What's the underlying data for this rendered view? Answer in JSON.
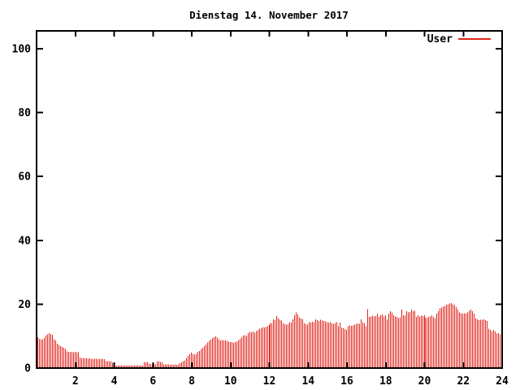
{
  "chart_data": {
    "type": "bar",
    "title": "Dienstag 14. November 2017",
    "xlabel": "",
    "ylabel": "",
    "x": {
      "unit": "hour",
      "min": 0,
      "max": 24,
      "ticks": [
        2,
        4,
        6,
        8,
        10,
        12,
        14,
        16,
        18,
        20,
        22,
        24
      ]
    },
    "y": {
      "min": 0,
      "max": 105,
      "ticks": [
        0,
        20,
        40,
        60,
        80,
        100
      ]
    },
    "grid": false,
    "legend_position": "top-right-inside",
    "sample_interval_minutes": 5,
    "series": [
      {
        "name": "User",
        "color": "#e1251d",
        "style": "impulses",
        "values": [
          9.7,
          9.2,
          9.0,
          8.9,
          9.4,
          10.2,
          10.6,
          10.9,
          10.7,
          10.4,
          9.0,
          8.6,
          7.6,
          7.2,
          6.9,
          6.6,
          6.3,
          6.0,
          5.2,
          5.1,
          5.0,
          5.1,
          5.0,
          5.1,
          5.0,
          4.9,
          3.3,
          3.1,
          3.2,
          3.1,
          3.0,
          2.9,
          3.0,
          2.9,
          2.8,
          2.9,
          2.9,
          2.8,
          2.9,
          2.8,
          2.9,
          2.8,
          2.2,
          2.1,
          2.2,
          2.1,
          1.6,
          1.2,
          0.9,
          0.8,
          0.9,
          0.8,
          0.9,
          0.8,
          0.9,
          0.8,
          0.9,
          0.8,
          0.9,
          0.8,
          0.9,
          0.8,
          0.9,
          0.8,
          0.9,
          0.8,
          1.9,
          1.8,
          1.9,
          1.4,
          1.3,
          1.2,
          1.3,
          1.2,
          2.0,
          2.1,
          1.9,
          1.8,
          1.2,
          1.1,
          1.2,
          1.1,
          1.0,
          1.1,
          1.0,
          1.1,
          1.0,
          1.1,
          1.5,
          1.8,
          2.1,
          2.4,
          3.2,
          3.8,
          4.3,
          4.8,
          4.4,
          4.2,
          4.5,
          5.1,
          5.4,
          5.8,
          6.4,
          6.9,
          7.4,
          8.0,
          8.5,
          8.9,
          9.4,
          9.7,
          9.9,
          9.6,
          8.9,
          8.7,
          8.8,
          8.6,
          8.7,
          8.5,
          8.3,
          8.2,
          8.2,
          7.9,
          8.1,
          8.3,
          8.6,
          9.1,
          9.7,
          10.2,
          10.3,
          10.0,
          11.0,
          11.3,
          11.2,
          11.4,
          11.1,
          11.6,
          11.9,
          12.3,
          12.5,
          12.8,
          12.7,
          12.9,
          13.1,
          13.5,
          14.1,
          14.0,
          15.3,
          15.0,
          16.3,
          15.6,
          15.2,
          14.9,
          14.0,
          13.8,
          13.6,
          13.7,
          14.4,
          14.2,
          15.3,
          16.5,
          17.4,
          16.8,
          15.8,
          15.5,
          15.3,
          14.0,
          13.8,
          13.6,
          14.4,
          14.3,
          14.5,
          14.4,
          15.3,
          15.0,
          14.8,
          15.1,
          14.9,
          14.8,
          14.6,
          14.4,
          14.2,
          14.4,
          14.0,
          13.9,
          14.1,
          14.4,
          13.1,
          14.2,
          12.7,
          12.5,
          12.2,
          11.9,
          13.1,
          13.3,
          13.2,
          13.4,
          13.6,
          13.8,
          14.0,
          13.9,
          15.3,
          14.4,
          14.0,
          13.1,
          18.4,
          16.0,
          16.2,
          16.4,
          16.1,
          16.3,
          17.0,
          16.0,
          16.5,
          16.8,
          16.2,
          16.5,
          15.3,
          17.0,
          17.8,
          17.4,
          16.5,
          16.2,
          16.0,
          15.7,
          15.9,
          18.3,
          16.5,
          16.4,
          17.8,
          17.4,
          17.6,
          18.3,
          17.8,
          18.0,
          16.0,
          16.5,
          16.2,
          16.4,
          16.3,
          16.5,
          15.8,
          15.7,
          16.0,
          16.2,
          16.5,
          16.0,
          15.7,
          17.0,
          17.8,
          18.7,
          18.9,
          19.2,
          19.5,
          19.9,
          20.0,
          20.2,
          20.4,
          20.0,
          19.7,
          19.1,
          18.3,
          17.4,
          17.2,
          17.0,
          17.2,
          17.0,
          17.4,
          18.0,
          18.3,
          17.8,
          17.0,
          15.7,
          15.3,
          15.0,
          15.2,
          15.1,
          15.3,
          15.0,
          14.8,
          12.3,
          11.9,
          11.6,
          11.9,
          11.4,
          10.8,
          11.0,
          10.6,
          10.2
        ]
      }
    ]
  },
  "colors": {
    "bar": "#e1251d",
    "axis": "#000000",
    "text": "#000000",
    "background": "#ffffff"
  }
}
